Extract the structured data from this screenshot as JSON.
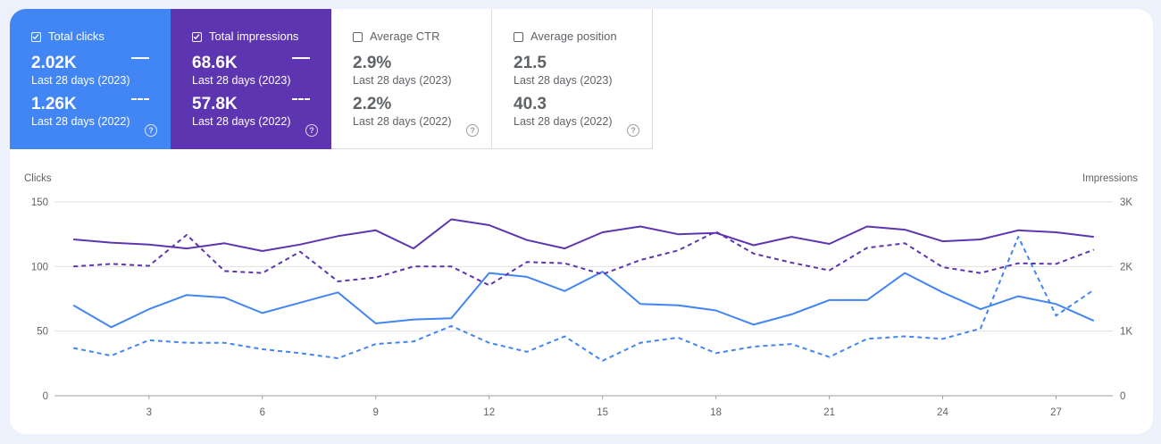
{
  "tiles": [
    {
      "label": "Total clicks",
      "checked": true,
      "value_2023": "2.02K",
      "period_2023": "Last 28 days (2023)",
      "value_2022": "1.26K",
      "period_2022": "Last 28 days (2022)"
    },
    {
      "label": "Total impressions",
      "checked": true,
      "value_2023": "68.6K",
      "period_2023": "Last 28 days (2023)",
      "value_2022": "57.8K",
      "period_2022": "Last 28 days (2022)"
    },
    {
      "label": "Average CTR",
      "checked": false,
      "value_2023": "2.9%",
      "period_2023": "Last 28 days (2023)",
      "value_2022": "2.2%",
      "period_2022": "Last 28 days (2022)"
    },
    {
      "label": "Average position",
      "checked": false,
      "value_2023": "21.5",
      "period_2023": "Last 28 days (2023)",
      "value_2022": "40.3",
      "period_2022": "Last 28 days (2022)"
    }
  ],
  "help_glyph": "?",
  "colors": {
    "clicks": "#4285f4",
    "impressions": "#5e35b1",
    "grid": "#e0e0e0",
    "axis_text": "#5f6368"
  },
  "chart_data": {
    "type": "line",
    "xlabel": "",
    "ylabel_left": "Clicks",
    "ylabel_right": "Impressions",
    "y_left_ticks": [
      "0",
      "50",
      "100",
      "150"
    ],
    "y_right_ticks": [
      "0",
      "1K",
      "2K",
      "3K"
    ],
    "x_ticks": [
      "3",
      "6",
      "9",
      "12",
      "15",
      "18",
      "21",
      "24",
      "27"
    ],
    "ylim_left": [
      0,
      150
    ],
    "ylim_right": [
      0,
      3000
    ],
    "x": [
      1,
      2,
      3,
      4,
      5,
      6,
      7,
      8,
      9,
      10,
      11,
      12,
      13,
      14,
      15,
      16,
      17,
      18,
      19,
      20,
      21,
      22,
      23,
      24,
      25,
      26,
      27,
      28
    ],
    "series": [
      {
        "axis": "left",
        "style": "solid",
        "color": "#4285f4",
        "values": [
          70,
          53,
          67,
          78,
          76,
          64,
          72,
          80,
          56,
          59,
          60,
          95,
          92,
          81,
          96,
          71,
          70,
          66,
          55,
          63,
          74,
          74,
          95,
          80,
          67,
          77,
          71,
          58
        ]
      },
      {
        "axis": "left",
        "style": "dashed",
        "color": "#4285f4",
        "values": [
          37,
          31,
          43,
          41,
          41,
          36,
          33,
          29,
          40,
          42,
          54,
          41,
          34,
          46,
          27,
          41,
          45,
          33,
          38,
          40,
          30,
          44,
          46,
          44,
          52,
          123,
          62,
          82
        ]
      },
      {
        "axis": "right",
        "style": "solid",
        "color": "#5e35b1",
        "values": [
          2420,
          2370,
          2340,
          2280,
          2360,
          2240,
          2340,
          2470,
          2560,
          2280,
          2730,
          2640,
          2410,
          2280,
          2530,
          2620,
          2500,
          2520,
          2330,
          2460,
          2350,
          2620,
          2570,
          2390,
          2420,
          2560,
          2530,
          2460
        ]
      },
      {
        "axis": "right",
        "style": "dashed",
        "color": "#5e35b1",
        "values": [
          2000,
          2040,
          2010,
          2490,
          1930,
          1900,
          2230,
          1770,
          1830,
          2000,
          2000,
          1710,
          2070,
          2050,
          1880,
          2100,
          2250,
          2540,
          2200,
          2060,
          1940,
          2290,
          2360,
          1990,
          1900,
          2050,
          2040,
          2260
        ]
      }
    ]
  }
}
